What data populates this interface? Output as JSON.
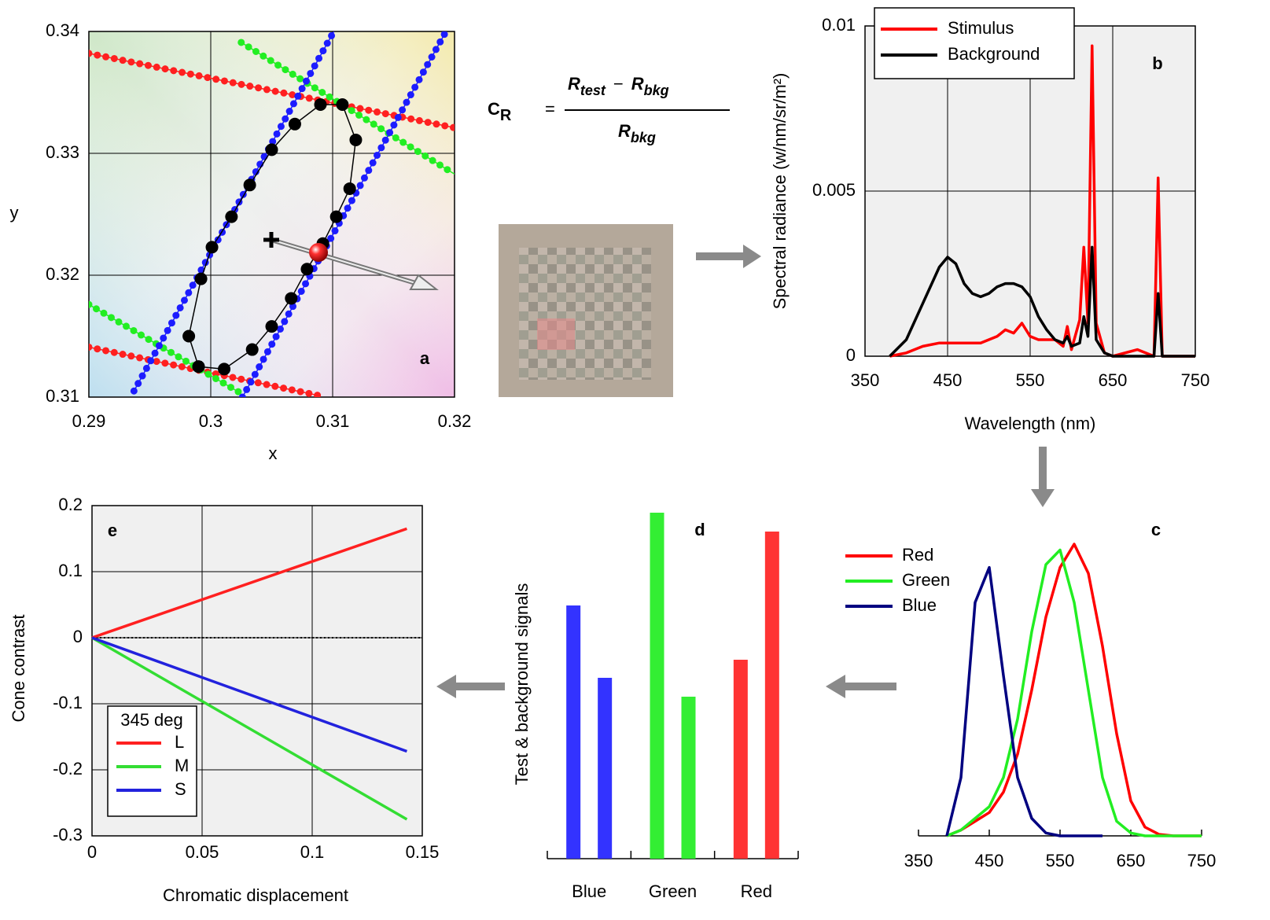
{
  "formula": {
    "symbol": "C",
    "symbol_sub": "R",
    "equals": "=",
    "test": "R",
    "test_sub": "test",
    "minus": "−",
    "bkg": "R",
    "bkg_sub": "bkg"
  },
  "chart_data": [
    {
      "type": "line",
      "panel_label": "a",
      "x_label": "x",
      "y_label": "y",
      "xlim": [
        0.29,
        0.32
      ],
      "ylim": [
        0.31,
        0.34
      ],
      "xticks": [
        0.29,
        0.3,
        0.31,
        0.32
      ],
      "yticks": [
        0.31,
        0.32,
        0.33,
        0.34
      ],
      "grid": true,
      "series": [
        {
          "color": "#ff2020",
          "style": "dotted",
          "x": [
            0.29,
            0.32
          ],
          "values": [
            0.3382,
            0.3321
          ]
        },
        {
          "color": "#ff2020",
          "style": "dotted",
          "x": [
            0.29,
            0.309
          ],
          "values": [
            0.3141,
            0.3101
          ]
        },
        {
          "color": "#22ee22",
          "style": "dotted",
          "x": [
            0.3025,
            0.32
          ],
          "values": [
            0.3391,
            0.3283
          ]
        },
        {
          "color": "#22ee22",
          "style": "dotted",
          "x": [
            0.29,
            0.3025
          ],
          "values": [
            0.3176,
            0.3103
          ]
        },
        {
          "color": "#1c1cff",
          "style": "dotted",
          "x": [
            0.2937,
            0.3101
          ],
          "values": [
            0.3105,
            0.34
          ]
        },
        {
          "color": "#1c1cff",
          "style": "dotted",
          "x": [
            0.3026,
            0.3193
          ],
          "values": [
            0.31,
            0.34
          ]
        },
        {
          "color": "#000000",
          "style": "markers",
          "x": [
            0.299,
            0.3011,
            0.3034,
            0.305,
            0.3066,
            0.3079,
            0.3092,
            0.3103,
            0.3114,
            0.3119,
            0.3108,
            0.309,
            0.3069,
            0.305,
            0.3032,
            0.3017,
            0.3001,
            0.2992,
            0.2982,
            0.299
          ],
          "values": [
            0.3125,
            0.3123,
            0.3139,
            0.3158,
            0.3181,
            0.3205,
            0.3226,
            0.3248,
            0.3271,
            0.3311,
            0.334,
            0.334,
            0.3324,
            0.3303,
            0.3274,
            0.3248,
            0.3223,
            0.3197,
            0.315,
            0.3125
          ]
        }
      ]
    },
    {
      "type": "line",
      "panel_label": "b",
      "x_label": "Wavelength (nm)",
      "y_label": "Spectral radiance (w/nm/sr/m²)",
      "xlim": [
        350,
        750
      ],
      "ylim": [
        0,
        0.01
      ],
      "xticks": [
        350,
        450,
        550,
        650,
        750
      ],
      "yticks": [
        0,
        0.005,
        0.01
      ],
      "grid": true,
      "legend": "upper left",
      "x": [
        380,
        400,
        420,
        440,
        450,
        460,
        470,
        480,
        490,
        500,
        510,
        520,
        530,
        540,
        550,
        560,
        570,
        580,
        590,
        595,
        600,
        610,
        615,
        620,
        625,
        630,
        640,
        650,
        680,
        700,
        705,
        710,
        750
      ],
      "series": [
        {
          "name": "Stimulus",
          "color": "#ff0000",
          "values": [
            0,
            0.0001,
            0.0003,
            0.0004,
            0.0004,
            0.0004,
            0.0004,
            0.0004,
            0.0004,
            0.0005,
            0.0006,
            0.0008,
            0.0007,
            0.001,
            0.0006,
            0.0005,
            0.0005,
            0.0005,
            0.0003,
            0.0009,
            0.0002,
            0.0011,
            0.0033,
            0.001,
            0.0094,
            0.001,
            0.0001,
            0,
            0.0002,
            0,
            0.0054,
            0,
            0
          ]
        },
        {
          "name": "Background",
          "color": "#000000",
          "values": [
            0,
            0.0005,
            0.0016,
            0.0027,
            0.003,
            0.0028,
            0.0022,
            0.0019,
            0.0018,
            0.0019,
            0.0021,
            0.0022,
            0.0022,
            0.0021,
            0.0018,
            0.0012,
            0.0008,
            0.0005,
            0.0004,
            0.0006,
            0.0003,
            0.0004,
            0.0012,
            0.0006,
            0.0033,
            0.0005,
            0.0001,
            0,
            0,
            0,
            0.0019,
            0,
            0
          ]
        }
      ]
    },
    {
      "type": "line",
      "panel_label": "c",
      "legend": "left",
      "xlim": [
        350,
        750
      ],
      "ylim": [
        0,
        1
      ],
      "xticks": [
        350,
        450,
        550,
        650,
        750
      ],
      "x": [
        390,
        410,
        430,
        450,
        470,
        490,
        510,
        530,
        550,
        570,
        590,
        610,
        630,
        650,
        670,
        690,
        710,
        730,
        750
      ],
      "series": [
        {
          "name": "Red",
          "color": "#ff0000",
          "values": [
            0,
            0.02,
            0.05,
            0.08,
            0.15,
            0.28,
            0.5,
            0.75,
            0.92,
            1.0,
            0.9,
            0.65,
            0.35,
            0.12,
            0.03,
            0.005,
            0,
            0,
            0
          ]
        },
        {
          "name": "Green",
          "color": "#22ee22",
          "values": [
            0,
            0.02,
            0.06,
            0.1,
            0.2,
            0.4,
            0.7,
            0.93,
            0.98,
            0.8,
            0.5,
            0.2,
            0.05,
            0.01,
            0,
            0,
            0,
            0,
            0
          ]
        },
        {
          "name": "Blue",
          "color": "#000080",
          "values": [
            0,
            0.2,
            0.8,
            0.92,
            0.55,
            0.2,
            0.06,
            0.01,
            0,
            0,
            0,
            0,
            null,
            null,
            null,
            null,
            null,
            null,
            null
          ]
        }
      ]
    },
    {
      "type": "bar",
      "panel_label": "d",
      "y_label": "Test & background signals",
      "categories": [
        "Blue",
        "Green",
        "Red"
      ],
      "colors": [
        "#3333ff",
        "#33ee33",
        "#ff3333"
      ],
      "ylim": [
        0,
        0.44
      ],
      "series": [
        {
          "values": [
            0.322,
            0.44,
            0.253
          ]
        },
        {
          "values": [
            0.23,
            0.206,
            0.416
          ]
        }
      ]
    },
    {
      "type": "line",
      "panel_label": "e",
      "x_label": "Chromatic displacement",
      "y_label": "Cone contrast",
      "xlim": [
        0,
        0.15
      ],
      "ylim": [
        -0.3,
        0.2
      ],
      "xticks": [
        0,
        0.05,
        0.1,
        0.15
      ],
      "yticks": [
        -0.3,
        -0.2,
        -0.1,
        0,
        0.1,
        0.2
      ],
      "grid": true,
      "legend": "lower left",
      "legend_title": "345 deg",
      "series": [
        {
          "name": "L",
          "color": "#ff2020",
          "x": [
            0,
            0.143
          ],
          "values": [
            0,
            0.165
          ]
        },
        {
          "name": "M",
          "color": "#33dd33",
          "x": [
            0,
            0.143
          ],
          "values": [
            0,
            -0.275
          ]
        },
        {
          "name": "S",
          "color": "#2222dd",
          "x": [
            0,
            0.143
          ],
          "values": [
            0,
            -0.172
          ]
        }
      ]
    }
  ]
}
